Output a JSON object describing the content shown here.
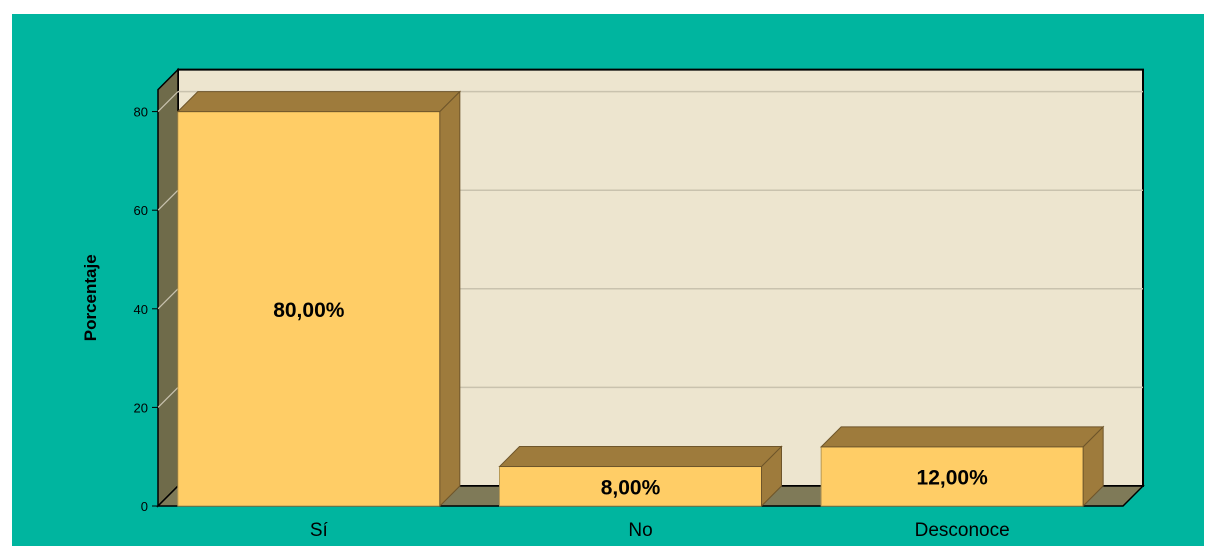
{
  "chart_data": {
    "type": "bar",
    "categories": [
      "Sí",
      "No",
      "Desconoce"
    ],
    "values": [
      80,
      8,
      12
    ],
    "data_labels": [
      "80,00%",
      "8,00%",
      "12,00%"
    ],
    "title": "",
    "xlabel": "",
    "ylabel": "Porcentaje",
    "ylim": [
      0,
      80
    ],
    "yticks": [
      0,
      20,
      40,
      60,
      80
    ],
    "grid": true,
    "three_d": true,
    "colors": {
      "background": "#00b59f",
      "plot_back": "#ede5cf",
      "bar_front": "#ffcd66",
      "bar_side": "#9e7b3c",
      "floor": "#7f7a58",
      "wall": "#6f6b4a"
    }
  }
}
